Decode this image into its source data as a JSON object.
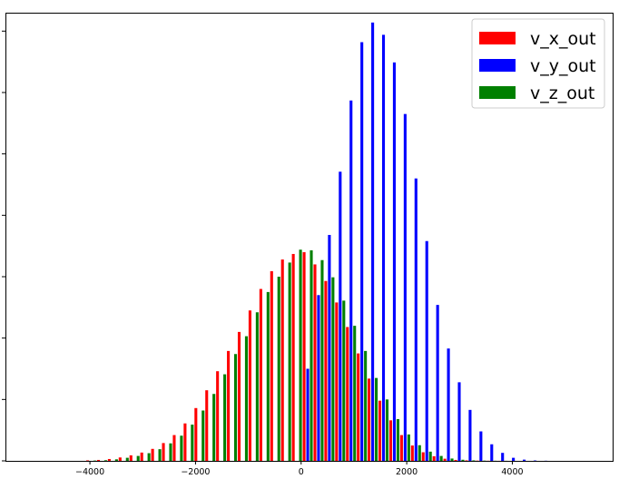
{
  "chart_data": {
    "type": "bar",
    "title": "",
    "xlabel": "",
    "ylabel": "",
    "xlim": [
      -5600,
      5900
    ],
    "ylim": [
      0,
      7300
    ],
    "x_ticks": [
      -4000,
      -2000,
      0,
      2000,
      4000
    ],
    "x_tick_labels": [
      "−4000",
      "−2000",
      "0",
      "2000",
      "4000"
    ],
    "y_tick_labels_visible": false,
    "grid": false,
    "legend_position": "top-right",
    "bin_width": 205,
    "series": [
      {
        "name": "v_x_out",
        "color": "#ff0000",
        "x": [
          -3975,
          -3770,
          -3565,
          -3360,
          -3155,
          -2950,
          -2745,
          -2540,
          -2335,
          -2130,
          -1925,
          -1720,
          -1515,
          -1310,
          -1105,
          -900,
          -695,
          -490,
          -285,
          -80,
          125,
          330,
          535,
          740,
          945,
          1150,
          1355,
          1560,
          1765,
          1970,
          2175,
          2380,
          2585,
          2790,
          2995,
          3200,
          3405,
          3610,
          3815
        ],
        "values": [
          8,
          15,
          30,
          55,
          90,
          135,
          195,
          290,
          420,
          610,
          860,
          1150,
          1460,
          1790,
          2100,
          2450,
          2800,
          3090,
          3280,
          3370,
          3400,
          3200,
          2930,
          2580,
          2180,
          1750,
          1340,
          980,
          660,
          420,
          250,
          140,
          75,
          35,
          15,
          8,
          4,
          2,
          1
        ]
      },
      {
        "name": "v_y_out",
        "color": "#0000ff",
        "x": [
          125,
          330,
          535,
          740,
          945,
          1150,
          1355,
          1560,
          1765,
          1970,
          2175,
          2380,
          2585,
          2790,
          2995,
          3200,
          3405,
          3610,
          3815,
          4020,
          4225,
          4430,
          4635
        ],
        "values": [
          1500,
          2700,
          3680,
          4710,
          5870,
          6820,
          7140,
          6940,
          6490,
          5650,
          4600,
          3580,
          2540,
          1830,
          1280,
          830,
          480,
          270,
          130,
          50,
          20,
          6,
          2
        ]
      },
      {
        "name": "v_z_out",
        "color": "#008000",
        "x": [
          -3975,
          -3770,
          -3565,
          -3360,
          -3155,
          -2950,
          -2745,
          -2540,
          -2335,
          -2130,
          -1925,
          -1720,
          -1515,
          -1310,
          -1105,
          -900,
          -695,
          -490,
          -285,
          -80,
          125,
          330,
          535,
          740,
          945,
          1150,
          1355,
          1560,
          1765,
          1970,
          2175,
          2380,
          2585,
          2790,
          2995,
          3200,
          3405,
          3610,
          3815
        ],
        "values": [
          5,
          10,
          25,
          50,
          80,
          125,
          190,
          285,
          410,
          590,
          820,
          1090,
          1410,
          1740,
          2030,
          2420,
          2750,
          3000,
          3230,
          3440,
          3430,
          3270,
          2990,
          2610,
          2200,
          1790,
          1350,
          1000,
          680,
          430,
          255,
          150,
          80,
          38,
          18,
          8,
          4,
          2,
          1
        ]
      }
    ]
  }
}
